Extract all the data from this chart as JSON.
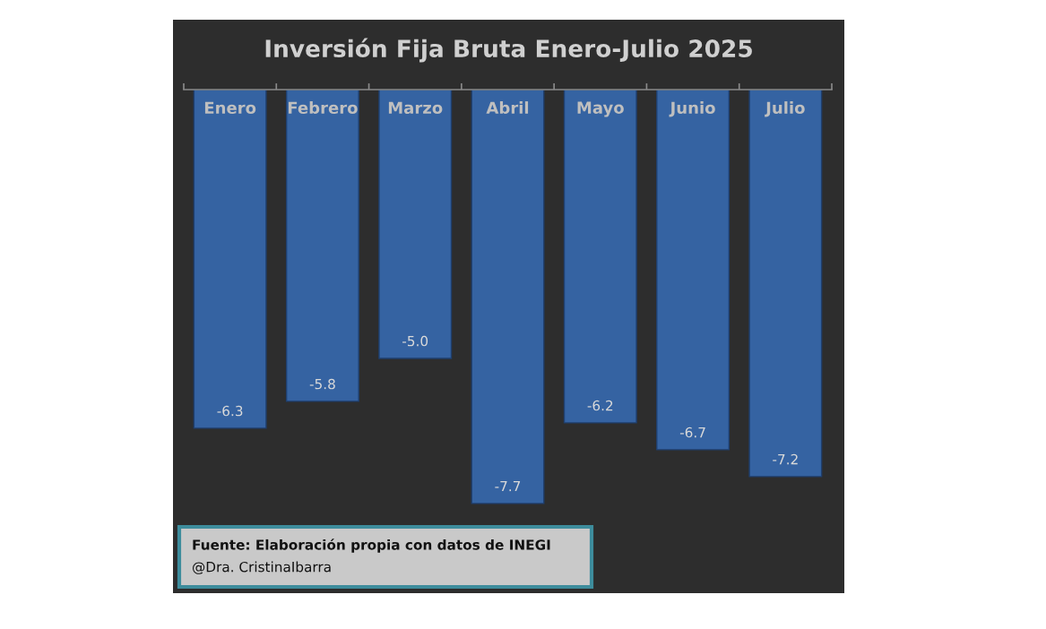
{
  "chart_data": {
    "type": "bar",
    "title": "Inversión Fija Bruta Enero-Julio 2025",
    "categories": [
      "Enero",
      "Febrero",
      "Marzo",
      "Abril",
      "Mayo",
      "Junio",
      "Julio"
    ],
    "values": [
      -6.3,
      -5.8,
      -5.0,
      -7.7,
      -6.2,
      -6.7,
      -7.2
    ],
    "value_labels": [
      "-6.3",
      "-5.8",
      "-5.0",
      "-7.7",
      "-6.2",
      "-6.7",
      "-7.2"
    ],
    "color": "#3563a2",
    "annotations": [
      "Fuente: Elaboración propia con datos de INEGI",
      "@Dra. CristinaIbarra"
    ],
    "tick_labels": "x",
    "grid": false,
    "legend": false
  }
}
